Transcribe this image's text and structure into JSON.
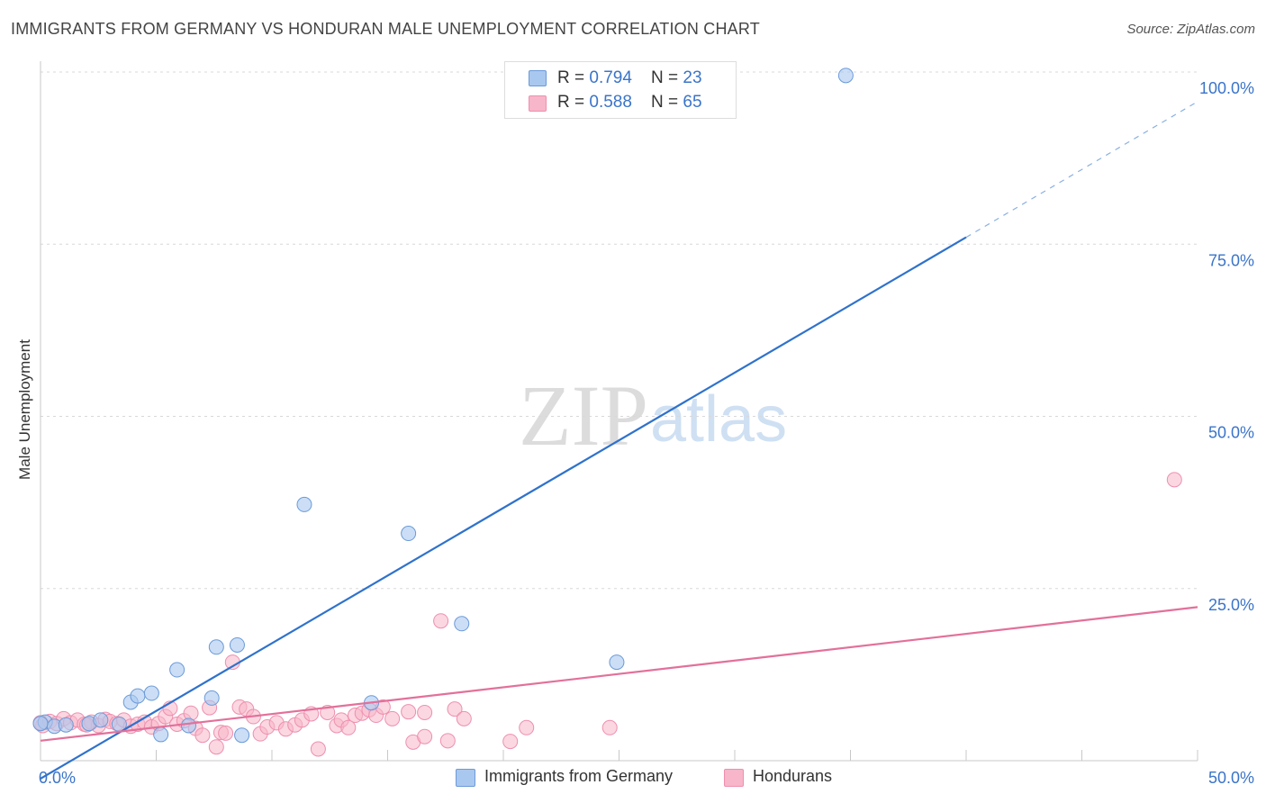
{
  "title": "IMMIGRANTS FROM GERMANY VS HONDURAN MALE UNEMPLOYMENT CORRELATION CHART",
  "source": "Source: ZipAtlas.com",
  "watermark": {
    "zip": "ZIP",
    "atlas": "atlas"
  },
  "legend": {
    "row1": {
      "r_label": "R = ",
      "r_value": "0.794",
      "n_label": "N = ",
      "n_value": "23"
    },
    "row2": {
      "r_label": "R = ",
      "r_value": "0.588",
      "n_label": "N = ",
      "n_value": "65"
    }
  },
  "bottom_legend": {
    "series1": "Immigrants from Germany",
    "series2": "Hondurans"
  },
  "colors": {
    "blue_fill": "#a9c8f0",
    "blue_stroke": "#6a9ad8",
    "blue_line": "#2f72cc",
    "pink_fill": "#f7b6c9",
    "pink_stroke": "#ee8faf",
    "pink_line": "#e3709a",
    "axis_text": "#3a74c9"
  },
  "chart_data": {
    "type": "scatter",
    "title": "IMMIGRANTS FROM GERMANY VS HONDURAN MALE UNEMPLOYMENT CORRELATION CHART",
    "xlabel": "",
    "ylabel": "Male Unemployment",
    "xlim": [
      0,
      50
    ],
    "ylim": [
      0,
      100
    ],
    "x_tick_labels": [
      "0.0%",
      "50.0%"
    ],
    "y_tick_labels": [
      "100.0%",
      "75.0%",
      "50.0%",
      "25.0%"
    ],
    "y_ticks": [
      100,
      75,
      50,
      25
    ],
    "series": [
      {
        "name": "Immigrants from Germany",
        "R": 0.794,
        "N": 23,
        "points": [
          [
            0.2,
            5.6
          ],
          [
            0.6,
            5.0
          ],
          [
            1.1,
            5.2
          ],
          [
            2.1,
            5.4
          ],
          [
            2.6,
            5.9
          ],
          [
            3.4,
            5.3
          ],
          [
            3.9,
            8.5
          ],
          [
            4.2,
            9.4
          ],
          [
            4.8,
            9.8
          ],
          [
            5.2,
            3.8
          ],
          [
            5.9,
            13.2
          ],
          [
            6.4,
            5.1
          ],
          [
            7.4,
            9.1
          ],
          [
            7.6,
            16.5
          ],
          [
            8.5,
            16.8
          ],
          [
            8.7,
            3.7
          ],
          [
            11.4,
            37.2
          ],
          [
            14.3,
            8.4
          ],
          [
            15.9,
            33.0
          ],
          [
            18.2,
            19.9
          ],
          [
            24.9,
            14.3
          ],
          [
            34.8,
            99.5
          ],
          [
            0.0,
            5.4
          ]
        ],
        "trend": {
          "x": [
            0,
            40
          ],
          "y": [
            -2.6,
            76.0
          ],
          "dashed_x": [
            40,
            50
          ],
          "dashed_y": [
            76.0,
            95.7
          ]
        }
      },
      {
        "name": "Hondurans",
        "R": 0.588,
        "N": 65,
        "points": [
          [
            0.1,
            5.1
          ],
          [
            0.4,
            5.7
          ],
          [
            0.7,
            5.4
          ],
          [
            1.0,
            6.1
          ],
          [
            1.3,
            5.5
          ],
          [
            1.6,
            5.9
          ],
          [
            1.9,
            5.3
          ],
          [
            2.2,
            5.6
          ],
          [
            2.5,
            5.1
          ],
          [
            2.8,
            6.0
          ],
          [
            3.0,
            5.7
          ],
          [
            3.3,
            5.4
          ],
          [
            3.6,
            5.9
          ],
          [
            3.9,
            5.0
          ],
          [
            4.2,
            5.3
          ],
          [
            4.5,
            5.6
          ],
          [
            4.8,
            4.9
          ],
          [
            5.1,
            5.4
          ],
          [
            5.4,
            6.4
          ],
          [
            5.6,
            7.6
          ],
          [
            5.9,
            5.3
          ],
          [
            6.2,
            5.8
          ],
          [
            6.5,
            6.9
          ],
          [
            6.7,
            4.7
          ],
          [
            7.0,
            3.7
          ],
          [
            7.3,
            7.7
          ],
          [
            7.6,
            2.0
          ],
          [
            7.8,
            4.1
          ],
          [
            8.0,
            4.0
          ],
          [
            8.3,
            14.3
          ],
          [
            8.6,
            7.8
          ],
          [
            8.9,
            7.5
          ],
          [
            9.2,
            6.4
          ],
          [
            9.5,
            3.9
          ],
          [
            9.8,
            4.9
          ],
          [
            10.2,
            5.5
          ],
          [
            10.6,
            4.6
          ],
          [
            11.0,
            5.2
          ],
          [
            11.3,
            5.9
          ],
          [
            11.7,
            6.8
          ],
          [
            12.0,
            1.7
          ],
          [
            12.4,
            7.0
          ],
          [
            12.8,
            5.1
          ],
          [
            13.0,
            5.9
          ],
          [
            13.3,
            4.8
          ],
          [
            13.6,
            6.6
          ],
          [
            13.9,
            6.9
          ],
          [
            14.2,
            7.4
          ],
          [
            14.5,
            6.6
          ],
          [
            14.8,
            7.8
          ],
          [
            15.2,
            6.1
          ],
          [
            15.9,
            7.1
          ],
          [
            16.1,
            2.7
          ],
          [
            16.6,
            7.0
          ],
          [
            16.6,
            3.5
          ],
          [
            17.3,
            20.3
          ],
          [
            17.6,
            2.9
          ],
          [
            17.9,
            7.5
          ],
          [
            18.3,
            6.1
          ],
          [
            20.3,
            2.8
          ],
          [
            21.0,
            4.8
          ],
          [
            24.6,
            4.8
          ],
          [
            49.0,
            40.8
          ],
          [
            0.0,
            5.5
          ],
          [
            2.0,
            5.2
          ]
        ],
        "trend": {
          "x": [
            0,
            50
          ],
          "y": [
            2.9,
            22.3
          ]
        }
      }
    ]
  }
}
